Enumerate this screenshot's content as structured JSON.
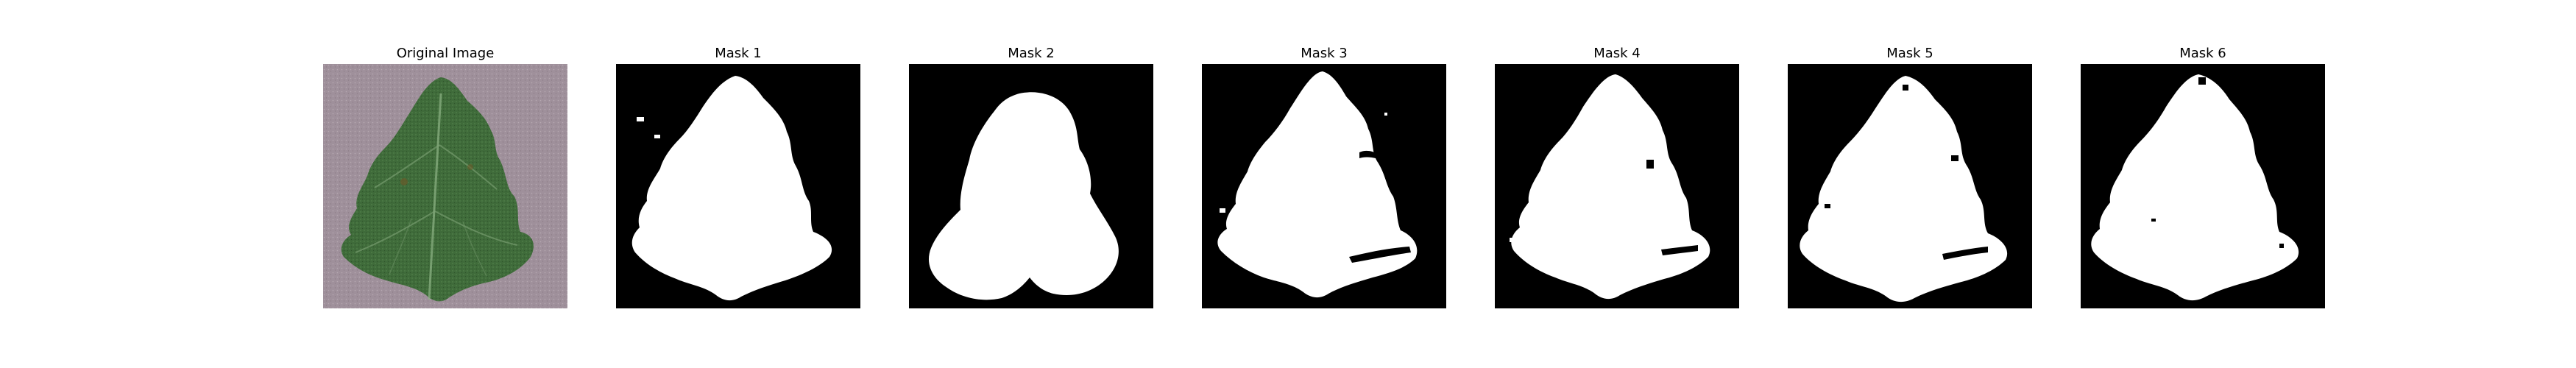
{
  "panels": [
    {
      "title": "Original Image",
      "kind": "photo"
    },
    {
      "title": "Mask 1",
      "kind": "mask"
    },
    {
      "title": "Mask 2",
      "kind": "mask"
    },
    {
      "title": "Mask 3",
      "kind": "mask"
    },
    {
      "title": "Mask 4",
      "kind": "mask"
    },
    {
      "title": "Mask 5",
      "kind": "mask"
    },
    {
      "title": "Mask 6",
      "kind": "mask"
    }
  ],
  "colors": {
    "background": "#ffffff",
    "mask_background": "#000000",
    "mask_foreground": "#ffffff",
    "leaf_green": "#3f6b3a",
    "photo_background": "#9a8a95"
  }
}
